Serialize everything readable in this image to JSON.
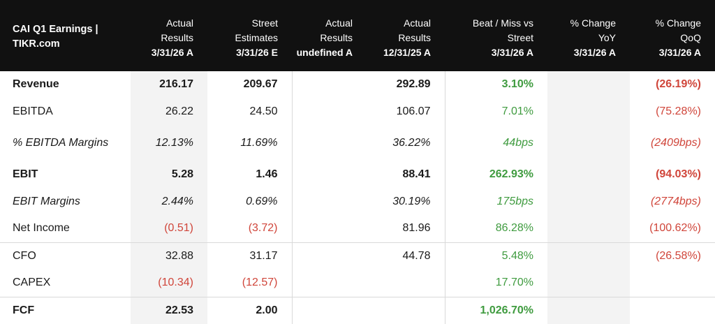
{
  "table": {
    "columns": [
      {
        "line1": "CAI Q1 Earnings |",
        "line2": "TIKR.com",
        "date": ""
      },
      {
        "line1": "Actual",
        "line2": "Results",
        "date": "3/31/26 A"
      },
      {
        "line1": "Street",
        "line2": "Estimates",
        "date": "3/31/26 E"
      },
      {
        "line1": "Actual",
        "line2": "Results",
        "date": "undefined A"
      },
      {
        "line1": "Actual",
        "line2": "Results",
        "date": "12/31/25 A"
      },
      {
        "line1": "Beat / Miss vs",
        "line2": "Street",
        "date": "3/31/26 A"
      },
      {
        "line1": "% Change",
        "line2": "YoY",
        "date": "3/31/26 A"
      },
      {
        "line1": "% Change",
        "line2": "QoQ",
        "date": "3/31/26 A"
      }
    ],
    "rows": [
      {
        "label": "Revenue",
        "cells": [
          "216.17",
          "209.67",
          "",
          "292.89",
          "3.10%",
          "",
          "(26.19%)"
        ]
      },
      {
        "label": "EBITDA",
        "cells": [
          "26.22",
          "24.50",
          "",
          "106.07",
          "7.01%",
          "",
          "(75.28%)"
        ]
      },
      {
        "label": "% EBITDA Margins",
        "cells": [
          "12.13%",
          "11.69%",
          "",
          "36.22%",
          "44bps",
          "",
          "(2409bps)"
        ]
      },
      {
        "label": "EBIT",
        "cells": [
          "5.28",
          "1.46",
          "",
          "88.41",
          "262.93%",
          "",
          "(94.03%)"
        ]
      },
      {
        "label": "EBIT Margins",
        "cells": [
          "2.44%",
          "0.69%",
          "",
          "30.19%",
          "175bps",
          "",
          "(2774bps)"
        ]
      },
      {
        "label": "Net Income",
        "cells": [
          "(0.51)",
          "(3.72)",
          "",
          "81.96",
          "86.28%",
          "",
          "(100.62%)"
        ]
      },
      {
        "label": "CFO",
        "cells": [
          "32.88",
          "31.17",
          "",
          "44.78",
          "5.48%",
          "",
          "(26.58%)"
        ]
      },
      {
        "label": "CAPEX",
        "cells": [
          "(10.34)",
          "(12.57)",
          "",
          "",
          "17.70%",
          "",
          ""
        ]
      },
      {
        "label": "FCF",
        "cells": [
          "22.53",
          "2.00",
          "",
          "",
          "1,026.70%",
          "",
          ""
        ]
      }
    ]
  },
  "colors": {
    "header_bg": "#111111",
    "positive": "#3f9b3f",
    "negative": "#d0453a",
    "shade": "#f3f3f3"
  }
}
